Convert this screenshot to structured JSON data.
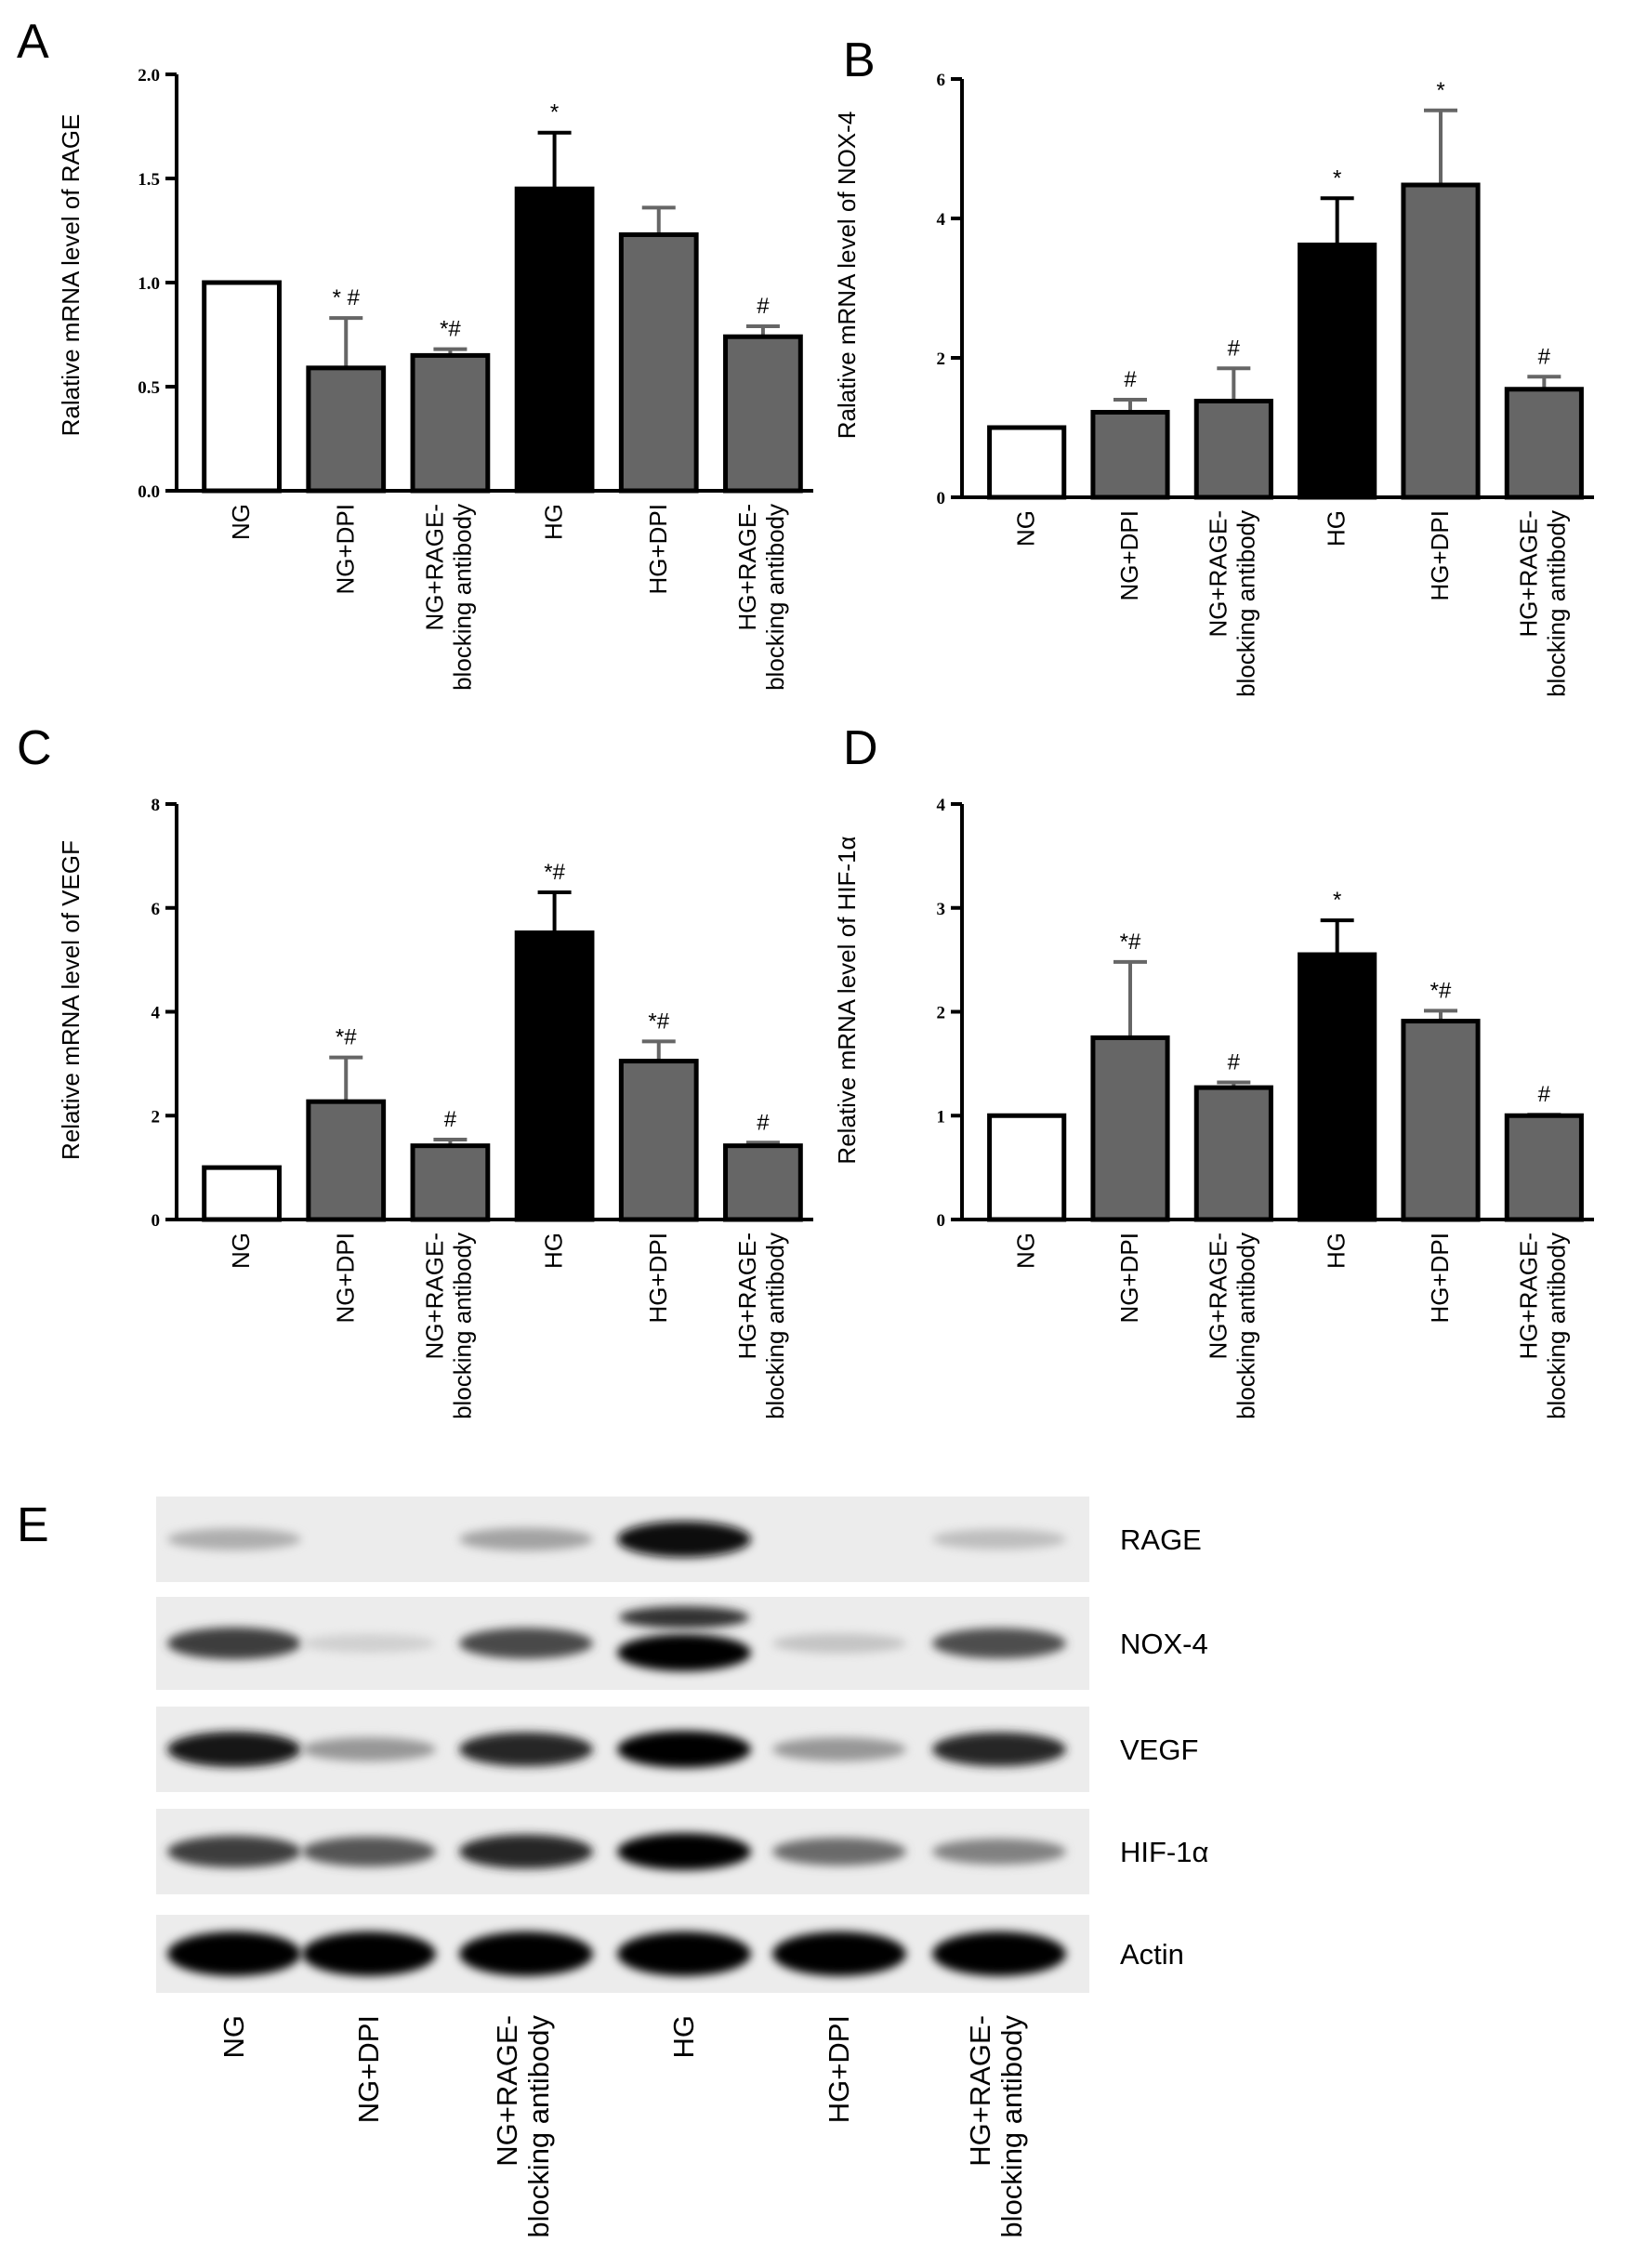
{
  "colors": {
    "white_bar": "#ffffff",
    "gray_bar": "#666666",
    "black_bar": "#000000",
    "axis": "#000000"
  },
  "chart_data": [
    {
      "panel": "A",
      "type": "bar",
      "ylabel": "Ralative mRNA level of RAGE",
      "ylim": [
        0,
        2.0
      ],
      "yticks": [
        "0.0",
        "0.5",
        "1.0",
        "1.5",
        "2.0"
      ],
      "categories": [
        "NG",
        "NG+DPI",
        "NG+RAGE-\nblocking antibody",
        "HG",
        "HG+DPI",
        "HG+RAGE-\nblocking antibody"
      ],
      "values": [
        1.0,
        0.59,
        0.65,
        1.45,
        1.23,
        0.74
      ],
      "errors": [
        0,
        0.24,
        0.03,
        0.27,
        0.13,
        0.05
      ],
      "fills": [
        "white",
        "gray",
        "gray",
        "black",
        "gray",
        "gray"
      ],
      "annotations": [
        "",
        "* #",
        "*#",
        "*",
        "",
        "#"
      ]
    },
    {
      "panel": "B",
      "type": "bar",
      "ylabel": "Ralative mRNA level of NOX-4",
      "ylim": [
        0,
        6
      ],
      "yticks": [
        "0",
        "2",
        "4",
        "6"
      ],
      "categories": [
        "NG",
        "NG+DPI",
        "NG+RAGE-\nblocking antibody",
        "HG",
        "HG+DPI",
        "HG+RAGE-\nblocking antibody"
      ],
      "values": [
        1.0,
        1.22,
        1.38,
        3.62,
        4.48,
        1.55
      ],
      "errors": [
        0,
        0.18,
        0.47,
        0.67,
        1.07,
        0.18
      ],
      "fills": [
        "white",
        "gray",
        "gray",
        "black",
        "gray",
        "gray"
      ],
      "annotations": [
        "",
        "#",
        "#",
        "*",
        "*",
        "#"
      ]
    },
    {
      "panel": "C",
      "type": "bar",
      "ylabel": "Relative mRNA level of VEGF",
      "ylim": [
        0,
        8
      ],
      "yticks": [
        "0",
        "2",
        "4",
        "6",
        "8"
      ],
      "categories": [
        "NG",
        "NG+DPI",
        "NG+RAGE-\nblocking antibody",
        "HG",
        "HG+DPI",
        "HG+RAGE-\nblocking antibody"
      ],
      "values": [
        1.0,
        2.27,
        1.42,
        5.52,
        3.05,
        1.42
      ],
      "errors": [
        0,
        0.85,
        0.12,
        0.78,
        0.38,
        0.06
      ],
      "fills": [
        "white",
        "gray",
        "gray",
        "black",
        "gray",
        "gray"
      ],
      "annotations": [
        "",
        "*#",
        "#",
        "*#",
        "*#",
        "#"
      ]
    },
    {
      "panel": "D",
      "type": "bar",
      "ylabel": "Relative mRNA level of HIF-1α",
      "ylim": [
        0,
        4
      ],
      "yticks": [
        "0",
        "1",
        "2",
        "3",
        "4"
      ],
      "categories": [
        "NG",
        "NG+DPI",
        "NG+RAGE-\nblocking antibody",
        "HG",
        "HG+DPI",
        "HG+RAGE-\nblocking antibody"
      ],
      "values": [
        1.0,
        1.75,
        1.27,
        2.55,
        1.91,
        1.0
      ],
      "errors": [
        0,
        0.73,
        0.05,
        0.33,
        0.1,
        0.01
      ],
      "fills": [
        "white",
        "gray",
        "gray",
        "black",
        "gray",
        "gray"
      ],
      "annotations": [
        "",
        "*#",
        "#",
        "*",
        "*#",
        "#"
      ]
    }
  ],
  "blot": {
    "panel": "E",
    "proteins": [
      "RAGE",
      "NOX-4",
      "VEGF",
      "HIF-1α",
      "Actin"
    ],
    "lanes": [
      "NG",
      "NG+DPI",
      "NG+RAGE-\nblocking antibody",
      "HG",
      "HG+DPI",
      "HG+RAGE-\nblocking antibody"
    ]
  }
}
